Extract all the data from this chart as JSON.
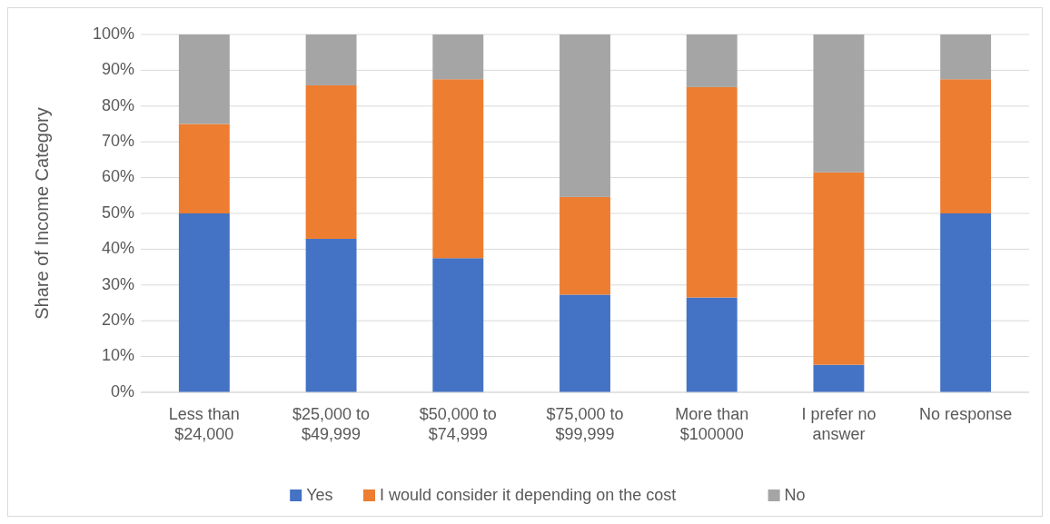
{
  "chart_data": {
    "type": "bar",
    "stacked": true,
    "ylabel": "Share of Income Category",
    "categories": [
      "Less than $24,000",
      "$25,000 to $49,999",
      "$50,000 to $74,999",
      "$75,000 to $99,999",
      "More than $100000",
      "I prefer no answer",
      "No response"
    ],
    "series": [
      {
        "name": "Yes",
        "color": "#4472c4",
        "values": [
          50,
          42.9,
          37.5,
          27.3,
          26.5,
          7.7,
          50
        ]
      },
      {
        "name": "I would consider it depending on the cost",
        "color": "#ed7d31",
        "values": [
          25,
          42.9,
          50,
          27.3,
          58.8,
          53.8,
          37.5
        ]
      },
      {
        "name": "No",
        "color": "#a5a5a5",
        "values": [
          25,
          14.2,
          12.5,
          45.4,
          14.7,
          38.5,
          12.5
        ]
      }
    ],
    "ylim": [
      0,
      100
    ],
    "yticks": [
      {
        "value": 0,
        "label": "0%"
      },
      {
        "value": 10,
        "label": "10%"
      },
      {
        "value": 20,
        "label": "20%"
      },
      {
        "value": 30,
        "label": "30%"
      },
      {
        "value": 40,
        "label": "40%"
      },
      {
        "value": 50,
        "label": "50%"
      },
      {
        "value": 60,
        "label": "60%"
      },
      {
        "value": 70,
        "label": "70%"
      },
      {
        "value": 80,
        "label": "80%"
      },
      {
        "value": 90,
        "label": "90%"
      },
      {
        "value": 100,
        "label": "100%"
      }
    ],
    "grid": "y",
    "legend": "bottom"
  }
}
